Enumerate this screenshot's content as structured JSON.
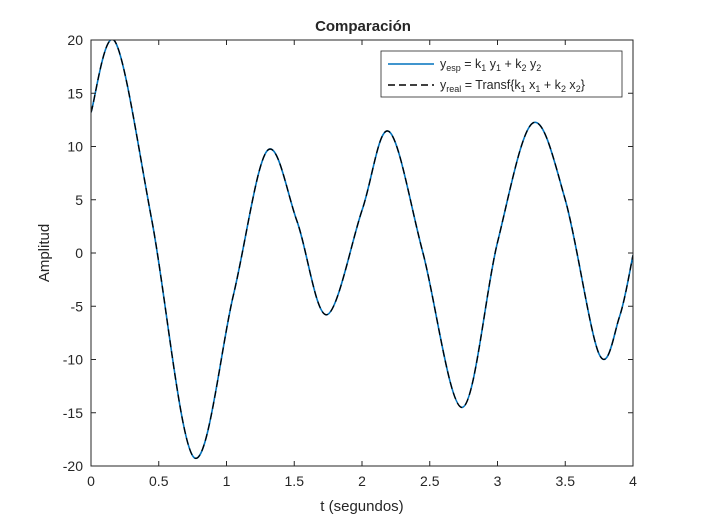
{
  "chart_data": {
    "type": "line",
    "title": "Comparación",
    "xlabel": "t (segundos)",
    "ylabel": "Amplitud",
    "xlim": [
      0,
      4
    ],
    "ylim": [
      -20,
      20
    ],
    "xticks": [
      0,
      0.5,
      1,
      1.5,
      2,
      2.5,
      3,
      3.5,
      4
    ],
    "xtick_labels": [
      "0",
      "0.5",
      "1",
      "1.5",
      "2",
      "2.5",
      "3",
      "3.5",
      "4"
    ],
    "yticks": [
      -20,
      -15,
      -10,
      -5,
      0,
      5,
      10,
      15,
      20
    ],
    "ytick_labels": [
      "-20",
      "-15",
      "-10",
      "-5",
      "0",
      "5",
      "10",
      "15",
      "20"
    ],
    "grid": false,
    "legend_position": "top-right",
    "colors": {
      "series_1": "#0072BD",
      "series_2": "#000000"
    },
    "legend": [
      {
        "parts": [
          {
            "t": "y"
          },
          {
            "t": "esp",
            "sub": true
          },
          {
            "t": " = k"
          },
          {
            "t": "1",
            "sub": true
          },
          {
            "t": " y"
          },
          {
            "t": "1",
            "sub": true
          },
          {
            "t": " + k"
          },
          {
            "t": "2",
            "sub": true
          },
          {
            "t": " y"
          },
          {
            "t": "2",
            "sub": true
          }
        ],
        "line_style": "solid"
      },
      {
        "parts": [
          {
            "t": "y"
          },
          {
            "t": "real",
            "sub": true
          },
          {
            "t": " = Transf{k"
          },
          {
            "t": "1",
            "sub": true
          },
          {
            "t": " x"
          },
          {
            "t": "1",
            "sub": true
          },
          {
            "t": " + k"
          },
          {
            "t": "2",
            "sub": true
          },
          {
            "t": " x"
          },
          {
            "t": "2",
            "sub": true
          },
          {
            "t": "}"
          }
        ],
        "line_style": "dashed"
      }
    ],
    "x": [
      0,
      0.18,
      0.45,
      0.76,
      1.05,
      1.3,
      1.52,
      1.74,
      2.0,
      2.2,
      2.45,
      2.74,
      3.0,
      3.26,
      3.5,
      3.75,
      3.9,
      4.0
    ],
    "series": [
      {
        "values": [
          13.2,
          19.8,
          3.0,
          -19.2,
          -4.0,
          9.6,
          3.0,
          -5.8,
          4.0,
          11.4,
          0.0,
          -14.5,
          1.0,
          12.2,
          5.0,
          -9.5,
          -6.0,
          -0.2
        ]
      },
      {
        "values": [
          13.2,
          19.8,
          3.0,
          -19.2,
          -4.0,
          9.6,
          3.0,
          -5.8,
          4.0,
          11.4,
          0.0,
          -14.5,
          1.0,
          12.2,
          5.0,
          -9.5,
          -6.0,
          -0.2
        ]
      }
    ]
  }
}
